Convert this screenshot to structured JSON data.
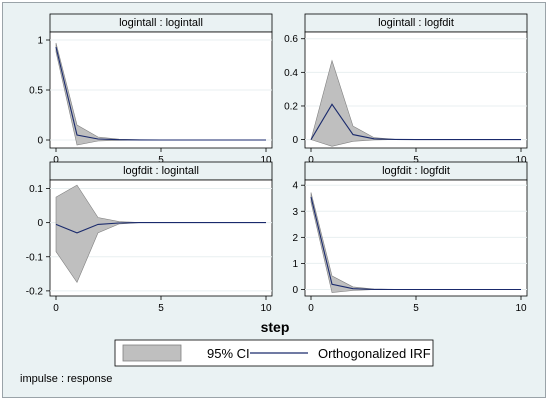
{
  "figure": {
    "xlabel": "step",
    "note": "impulse : response",
    "legend": {
      "ci_label": "95% CI",
      "irf_label": "Orthogonalized IRF"
    }
  },
  "colors": {
    "plot_background": "#ffffff",
    "figure_background": "#eaf2f3",
    "panel_title_background": "#eaf2f3",
    "ci_fill": "#bfbfbf",
    "irf_line": "#1a2a6c",
    "grid": "#e8eff0"
  },
  "chart_data": [
    {
      "type": "area",
      "title": "logintall : logintall",
      "x": [
        0,
        1,
        2,
        3,
        4,
        5,
        6,
        7,
        8,
        9,
        10
      ],
      "xticks": [
        0,
        5,
        10
      ],
      "ylim": [
        -0.08,
        1.08
      ],
      "yticks": [
        0,
        0.5,
        1
      ],
      "ytick_labels": [
        "0",
        "0.5",
        "1"
      ],
      "grid": true,
      "series": [
        {
          "name": "Orthogonalized IRF",
          "values": [
            0.93,
            0.05,
            0.01,
            0.003,
            0.001,
            0,
            0,
            0,
            0,
            0,
            0
          ]
        },
        {
          "name": "95% CI lower",
          "values": [
            0.88,
            -0.05,
            -0.01,
            -0.003,
            0,
            0,
            0,
            0,
            0,
            0,
            0
          ]
        },
        {
          "name": "95% CI upper",
          "values": [
            0.97,
            0.15,
            0.03,
            0.008,
            0.002,
            0,
            0,
            0,
            0,
            0,
            0
          ]
        }
      ]
    },
    {
      "type": "area",
      "title": "logintall : logfdit",
      "x": [
        0,
        1,
        2,
        3,
        4,
        5,
        6,
        7,
        8,
        9,
        10
      ],
      "xticks": [
        0,
        5,
        10
      ],
      "ylim": [
        -0.05,
        0.64
      ],
      "yticks": [
        0,
        0.2,
        0.4,
        0.6
      ],
      "ytick_labels": [
        "0",
        "0.2",
        "0.4",
        "0.6"
      ],
      "grid": true,
      "series": [
        {
          "name": "Orthogonalized IRF",
          "values": [
            0,
            0.21,
            0.03,
            0.005,
            0.001,
            0,
            0,
            0,
            0,
            0,
            0
          ]
        },
        {
          "name": "95% CI lower",
          "values": [
            0,
            -0.04,
            -0.01,
            -0.002,
            0,
            0,
            0,
            0,
            0,
            0,
            0
          ]
        },
        {
          "name": "95% CI upper",
          "values": [
            0,
            0.47,
            0.08,
            0.012,
            0.002,
            0,
            0,
            0,
            0,
            0,
            0
          ]
        }
      ]
    },
    {
      "type": "area",
      "title": "logfdit : logintall",
      "x": [
        0,
        1,
        2,
        3,
        4,
        5,
        6,
        7,
        8,
        9,
        10
      ],
      "xticks": [
        0,
        5,
        10
      ],
      "ylim": [
        -0.215,
        0.125
      ],
      "yticks": [
        -0.2,
        -0.1,
        0,
        0.1
      ],
      "ytick_labels": [
        "-0.2",
        "-0.1",
        "0",
        "0.1"
      ],
      "grid": true,
      "series": [
        {
          "name": "Orthogonalized IRF",
          "values": [
            -0.005,
            -0.03,
            -0.005,
            -0.001,
            0,
            0,
            0,
            0,
            0,
            0,
            0
          ]
        },
        {
          "name": "95% CI lower",
          "values": [
            -0.085,
            -0.175,
            -0.03,
            -0.004,
            0,
            0,
            0,
            0,
            0,
            0,
            0
          ]
        },
        {
          "name": "95% CI upper",
          "values": [
            0.075,
            0.11,
            0.015,
            0.003,
            0,
            0,
            0,
            0,
            0,
            0,
            0
          ]
        }
      ]
    },
    {
      "type": "area",
      "title": "logfdit : logfdit",
      "x": [
        0,
        1,
        2,
        3,
        4,
        5,
        6,
        7,
        8,
        9,
        10
      ],
      "xticks": [
        0,
        5,
        10
      ],
      "ylim": [
        -0.25,
        4.2
      ],
      "yticks": [
        0,
        1,
        2,
        3,
        4
      ],
      "ytick_labels": [
        "0",
        "1",
        "2",
        "3",
        "4"
      ],
      "grid": true,
      "series": [
        {
          "name": "Orthogonalized IRF",
          "values": [
            3.55,
            0.2,
            0.03,
            0.005,
            0.001,
            0,
            0,
            0,
            0,
            0,
            0
          ]
        },
        {
          "name": "95% CI lower",
          "values": [
            3.35,
            -0.12,
            -0.04,
            -0.005,
            0,
            0,
            0,
            0,
            0,
            0,
            0
          ]
        },
        {
          "name": "95% CI upper",
          "values": [
            3.72,
            0.52,
            0.1,
            0.015,
            0.002,
            0,
            0,
            0,
            0,
            0,
            0
          ]
        }
      ]
    }
  ]
}
